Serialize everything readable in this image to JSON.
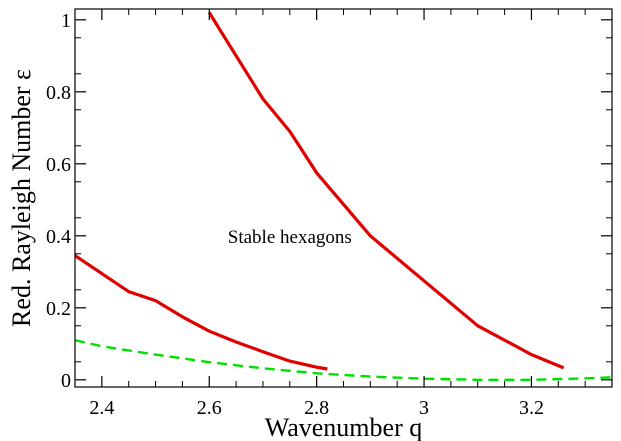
{
  "chart_data": {
    "type": "line",
    "title": "",
    "xlabel": "Wavenumber q",
    "ylabel": "Red. Rayleigh Number  ε",
    "xlim": [
      2.35,
      3.35
    ],
    "ylim": [
      -0.02,
      1.03
    ],
    "x_ticks": [
      2.4,
      2.6,
      2.8,
      3.0,
      3.2
    ],
    "x_tick_labels": [
      "2.4",
      "2.6",
      "2.8",
      "3",
      "3.2"
    ],
    "y_ticks": [
      0,
      0.2,
      0.4,
      0.6,
      0.8,
      1.0
    ],
    "y_tick_labels": [
      "0",
      "0.2",
      "0.4",
      "0.6",
      "0.8",
      "1"
    ],
    "grid": false,
    "annotations": [
      {
        "text": "Stable hexagons",
        "x": 2.75,
        "y": 0.4
      }
    ],
    "series": [
      {
        "style": "solid",
        "color": "#e00000",
        "x": [
          2.6,
          2.65,
          2.7,
          2.75,
          2.8,
          2.9,
          3.0,
          3.1,
          3.2,
          3.26
        ],
        "y": [
          1.02,
          0.9,
          0.78,
          0.69,
          0.575,
          0.4,
          0.275,
          0.15,
          0.07,
          0.033
        ]
      },
      {
        "style": "solid",
        "color": "#e00000",
        "x": [
          2.35,
          2.4,
          2.45,
          2.5,
          2.55,
          2.6,
          2.65,
          2.7,
          2.75,
          2.8,
          2.82
        ],
        "y": [
          0.345,
          0.295,
          0.245,
          0.22,
          0.175,
          0.135,
          0.105,
          0.078,
          0.052,
          0.035,
          0.03
        ]
      },
      {
        "style": "dashed",
        "color": "#00e000",
        "x": [
          2.35,
          2.4,
          2.5,
          2.6,
          2.7,
          2.8,
          2.9,
          3.0,
          3.1,
          3.2,
          3.3,
          3.35
        ],
        "y": [
          0.11,
          0.093,
          0.07,
          0.049,
          0.032,
          0.018,
          0.009,
          0.003,
          0.0,
          0.0,
          0.004,
          0.007
        ]
      }
    ]
  }
}
